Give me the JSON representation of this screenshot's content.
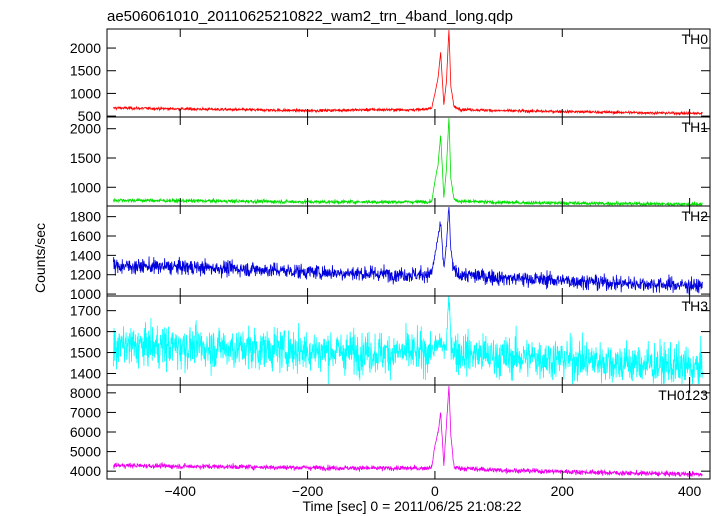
{
  "chart_data": {
    "type": "line",
    "title": "ae506061010_20110625210822_wam2_trn_4band_long.qdp",
    "xlabel": "Time [sec] 0 = 2011/06/25 21:08:22",
    "ylabel": "Counts/sec",
    "xlim": [
      -515,
      432
    ],
    "x_ticks": [
      -400,
      -200,
      0,
      200,
      400
    ],
    "x_ticklabels": [
      "−400",
      "−200",
      "0",
      "200",
      "400"
    ],
    "grid": false,
    "panels": [
      {
        "name": "TH0",
        "color": "#ff0000",
        "ylim": [
          480,
          2420
        ],
        "yticks": [
          500,
          1000,
          1500,
          2000
        ],
        "x": [
          -505,
          -400,
          -300,
          -200,
          -100,
          -20,
          -5,
          0,
          5,
          9,
          14,
          18,
          22,
          25,
          30,
          40,
          100,
          200,
          300,
          400,
          420
        ],
        "y": [
          680,
          660,
          640,
          620,
          640,
          640,
          680,
          1000,
          1350,
          1900,
          750,
          1250,
          2420,
          1150,
          700,
          650,
          620,
          600,
          580,
          560,
          560
        ]
      },
      {
        "name": "TH1",
        "color": "#00e000",
        "ylim": [
          680,
          2200
        ],
        "yticks": [
          1000,
          1500,
          2000
        ],
        "x": [
          -505,
          -400,
          -300,
          -200,
          -100,
          -20,
          -5,
          0,
          5,
          9,
          14,
          18,
          22,
          25,
          30,
          40,
          100,
          200,
          300,
          400,
          420
        ],
        "y": [
          780,
          770,
          760,
          750,
          750,
          750,
          760,
          1100,
          1400,
          1900,
          820,
          1300,
          2200,
          1150,
          790,
          760,
          740,
          730,
          720,
          710,
          710
        ]
      },
      {
        "name": "TH2",
        "color": "#0000dd",
        "ylim": [
          980,
          1910
        ],
        "yticks": [
          1000,
          1200,
          1400,
          1600,
          1800
        ],
        "x": [
          -505,
          -400,
          -300,
          -200,
          -100,
          -20,
          -5,
          0,
          5,
          9,
          14,
          18,
          22,
          25,
          30,
          40,
          100,
          200,
          300,
          400,
          420
        ],
        "y": [
          1290,
          1280,
          1260,
          1230,
          1210,
          1200,
          1220,
          1400,
          1600,
          1720,
          1270,
          1500,
          1910,
          1450,
          1230,
          1200,
          1170,
          1140,
          1110,
          1090,
          1080
        ]
      },
      {
        "name": "TH3",
        "color": "#00ffff",
        "ylim": [
          1345,
          1770
        ],
        "yticks": [
          1400,
          1500,
          1600,
          1700
        ],
        "x": [
          -505,
          -400,
          -300,
          -200,
          -100,
          -20,
          -5,
          0,
          5,
          9,
          14,
          18,
          22,
          25,
          30,
          40,
          100,
          200,
          300,
          400,
          420
        ],
        "y": [
          1530,
          1530,
          1520,
          1510,
          1500,
          1500,
          1510,
          1520,
          1530,
          1560,
          1510,
          1540,
          1770,
          1560,
          1510,
          1500,
          1480,
          1470,
          1450,
          1430,
          1420
        ]
      },
      {
        "name": "TH0123",
        "color": "#ee00ee",
        "ylim": [
          3600,
          8400
        ],
        "yticks": [
          4000,
          5000,
          6000,
          7000,
          8000
        ],
        "x": [
          -505,
          -400,
          -300,
          -200,
          -100,
          -20,
          -5,
          0,
          5,
          9,
          14,
          18,
          22,
          25,
          30,
          40,
          100,
          200,
          300,
          400,
          420
        ],
        "y": [
          4300,
          4250,
          4220,
          4180,
          4150,
          4150,
          4200,
          5300,
          6000,
          7000,
          4300,
          6300,
          8400,
          5800,
          4200,
          4150,
          4050,
          3980,
          3900,
          3850,
          3830
        ]
      }
    ]
  }
}
